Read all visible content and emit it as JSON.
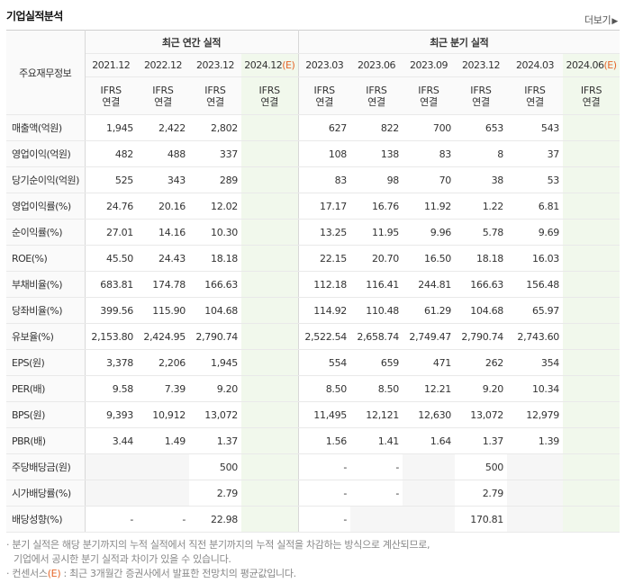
{
  "header": {
    "title": "기업실적분석",
    "more_label": "더보기",
    "more_arrow": "▶"
  },
  "table": {
    "metric_header": "주요재무정보",
    "annual_group_label": "최근 연간 실적",
    "quarter_group_label": "최근 분기 실적",
    "periods": [
      "2021.12",
      "2022.12",
      "2023.12",
      "2024.12(E)",
      "2023.03",
      "2023.06",
      "2023.09",
      "2023.12",
      "2024.03",
      "2024.06(E)"
    ],
    "ifrs_label": "IFRS",
    "ifrs_sub": "연결",
    "rows": [
      {
        "label": "매출액(억원)",
        "values": [
          "1,945",
          "2,422",
          "2,802",
          "",
          "627",
          "822",
          "700",
          "653",
          "543",
          ""
        ]
      },
      {
        "label": "영업이익(억원)",
        "values": [
          "482",
          "488",
          "337",
          "",
          "108",
          "138",
          "83",
          "8",
          "37",
          ""
        ]
      },
      {
        "label": "당기순이익(억원)",
        "values": [
          "525",
          "343",
          "289",
          "",
          "83",
          "98",
          "70",
          "38",
          "53",
          ""
        ]
      },
      {
        "label": "영업이익률(%)",
        "values": [
          "24.76",
          "20.16",
          "12.02",
          "",
          "17.17",
          "16.76",
          "11.92",
          "1.22",
          "6.81",
          ""
        ]
      },
      {
        "label": "순이익률(%)",
        "values": [
          "27.01",
          "14.16",
          "10.30",
          "",
          "13.25",
          "11.95",
          "9.96",
          "5.78",
          "9.69",
          ""
        ]
      },
      {
        "label": "ROE(%)",
        "values": [
          "45.50",
          "24.43",
          "18.18",
          "",
          "22.15",
          "20.70",
          "16.50",
          "18.18",
          "16.03",
          ""
        ]
      },
      {
        "label": "부채비율(%)",
        "values": [
          "683.81",
          "174.78",
          "166.63",
          "",
          "112.18",
          "116.41",
          "244.81",
          "166.63",
          "156.48",
          ""
        ]
      },
      {
        "label": "당좌비율(%)",
        "values": [
          "399.56",
          "115.90",
          "104.68",
          "",
          "114.92",
          "110.48",
          "61.29",
          "104.68",
          "65.97",
          ""
        ]
      },
      {
        "label": "유보율(%)",
        "values": [
          "2,153.80",
          "2,424.95",
          "2,790.74",
          "",
          "2,522.54",
          "2,658.74",
          "2,749.47",
          "2,790.74",
          "2,743.60",
          ""
        ]
      },
      {
        "label": "EPS(원)",
        "values": [
          "3,378",
          "2,206",
          "1,945",
          "",
          "554",
          "659",
          "471",
          "262",
          "354",
          ""
        ]
      },
      {
        "label": "PER(배)",
        "values": [
          "9.58",
          "7.39",
          "9.20",
          "",
          "8.50",
          "8.50",
          "12.21",
          "9.20",
          "10.34",
          ""
        ]
      },
      {
        "label": "BPS(원)",
        "values": [
          "9,393",
          "10,912",
          "13,072",
          "",
          "11,495",
          "12,121",
          "12,630",
          "13,072",
          "12,979",
          ""
        ]
      },
      {
        "label": "PBR(배)",
        "values": [
          "3.44",
          "1.49",
          "1.37",
          "",
          "1.56",
          "1.41",
          "1.64",
          "1.37",
          "1.39",
          ""
        ]
      },
      {
        "label": "주당배당금(원)",
        "values": [
          "",
          "",
          "500",
          "",
          "-",
          "-",
          "",
          "500",
          "",
          ""
        ]
      },
      {
        "label": "시가배당률(%)",
        "values": [
          "",
          "",
          "2.79",
          "",
          "-",
          "-",
          "",
          "2.79",
          "",
          ""
        ]
      },
      {
        "label": "배당성향(%)",
        "values": [
          "-",
          "-",
          "22.98",
          "",
          "-",
          "",
          "",
          "170.81",
          "",
          ""
        ]
      }
    ],
    "empty_cells": [
      [
        3,
        13
      ],
      [
        0,
        13
      ],
      [
        1,
        13
      ],
      [
        6,
        13
      ],
      [
        8,
        13
      ],
      [
        9,
        13
      ],
      [
        0,
        14
      ],
      [
        1,
        14
      ],
      [
        6,
        14
      ],
      [
        8,
        14
      ],
      [
        9,
        14
      ],
      [
        5,
        15
      ],
      [
        6,
        15
      ],
      [
        8,
        15
      ],
      [
        9,
        15
      ]
    ]
  },
  "notes": {
    "line1": "· 분기 실적은 해당 분기까지의 누적 실적에서 직전 분기까지의 누적 실적을 차감하는 방식으로 계산되므로,",
    "line2": "기업에서 공시한 분기 실적과 차이가 있을 수 있습니다.",
    "line3_prefix": "· 컨센서스",
    "line3_e": "(E)",
    "line3_suffix": " : 최근 3개월간 증권사에서 발표한 전망치의 평균값입니다."
  },
  "colors": {
    "ifrs": "#e5662a",
    "estimate_bg": "#f1f8ec",
    "header_bg": "#fafafa",
    "empty_bg": "#f6f6f6"
  }
}
